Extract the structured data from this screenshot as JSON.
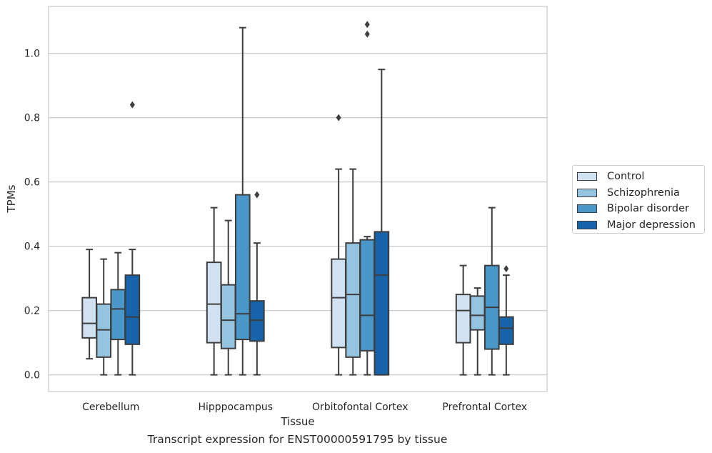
{
  "caption": "Transcript expression for ENST00000591795 by tissue",
  "chart_data": {
    "type": "box",
    "title": "",
    "xlabel": "Tissue",
    "ylabel": "TPMs",
    "ylim": [
      -0.052,
      1.146
    ],
    "yticks": [
      "0.0",
      "0.2",
      "0.4",
      "0.6",
      "0.8",
      "1.0"
    ],
    "grid": true,
    "legend_position": "right",
    "categories": [
      "Cerebellum",
      "Hipppocampus",
      "Orbitofontal Cortex",
      "Prefrontal Cortex"
    ],
    "series": [
      {
        "name": "Control",
        "color": "#d0e1f2",
        "boxes": [
          {
            "q1": 0.115,
            "median": 0.16,
            "q3": 0.24,
            "whisker_low": 0.05,
            "whisker_high": 0.39,
            "outliers": []
          },
          {
            "q1": 0.1,
            "median": 0.22,
            "q3": 0.35,
            "whisker_low": 0.0,
            "whisker_high": 0.52,
            "outliers": []
          },
          {
            "q1": 0.085,
            "median": 0.24,
            "q3": 0.36,
            "whisker_low": 0.0,
            "whisker_high": 0.64,
            "outliers": [
              0.8
            ]
          },
          {
            "q1": 0.1,
            "median": 0.2,
            "q3": 0.25,
            "whisker_low": 0.0,
            "whisker_high": 0.34,
            "outliers": []
          }
        ]
      },
      {
        "name": "Schizophrenia",
        "color": "#94c4df",
        "boxes": [
          {
            "q1": 0.055,
            "median": 0.14,
            "q3": 0.22,
            "whisker_low": 0.0,
            "whisker_high": 0.36,
            "outliers": []
          },
          {
            "q1": 0.082,
            "median": 0.17,
            "q3": 0.28,
            "whisker_low": 0.0,
            "whisker_high": 0.48,
            "outliers": []
          },
          {
            "q1": 0.055,
            "median": 0.25,
            "q3": 0.41,
            "whisker_low": 0.0,
            "whisker_high": 0.64,
            "outliers": []
          },
          {
            "q1": 0.14,
            "median": 0.185,
            "q3": 0.245,
            "whisker_low": 0.0,
            "whisker_high": 0.27,
            "outliers": []
          }
        ]
      },
      {
        "name": "Bipolar disorder",
        "color": "#4a98c9",
        "boxes": [
          {
            "q1": 0.11,
            "median": 0.205,
            "q3": 0.265,
            "whisker_low": 0.0,
            "whisker_high": 0.38,
            "outliers": []
          },
          {
            "q1": 0.11,
            "median": 0.19,
            "q3": 0.56,
            "whisker_low": 0.0,
            "whisker_high": 1.08,
            "outliers": []
          },
          {
            "q1": 0.075,
            "median": 0.185,
            "q3": 0.42,
            "whisker_low": 0.0,
            "whisker_high": 0.43,
            "outliers": [
              1.06,
              1.09
            ]
          },
          {
            "q1": 0.08,
            "median": 0.21,
            "q3": 0.34,
            "whisker_low": 0.0,
            "whisker_high": 0.52,
            "outliers": []
          }
        ]
      },
      {
        "name": "Major depression",
        "color": "#1764ab",
        "boxes": [
          {
            "q1": 0.095,
            "median": 0.18,
            "q3": 0.31,
            "whisker_low": 0.0,
            "whisker_high": 0.39,
            "outliers": [
              0.84
            ]
          },
          {
            "q1": 0.105,
            "median": 0.17,
            "q3": 0.23,
            "whisker_low": 0.0,
            "whisker_high": 0.41,
            "outliers": [
              0.56
            ]
          },
          {
            "q1": 0.0,
            "median": 0.31,
            "q3": 0.445,
            "whisker_low": 0.0,
            "whisker_high": 0.95,
            "outliers": []
          },
          {
            "q1": 0.095,
            "median": 0.145,
            "q3": 0.18,
            "whisker_low": 0.0,
            "whisker_high": 0.31,
            "outliers": [
              0.33
            ]
          }
        ]
      }
    ]
  }
}
